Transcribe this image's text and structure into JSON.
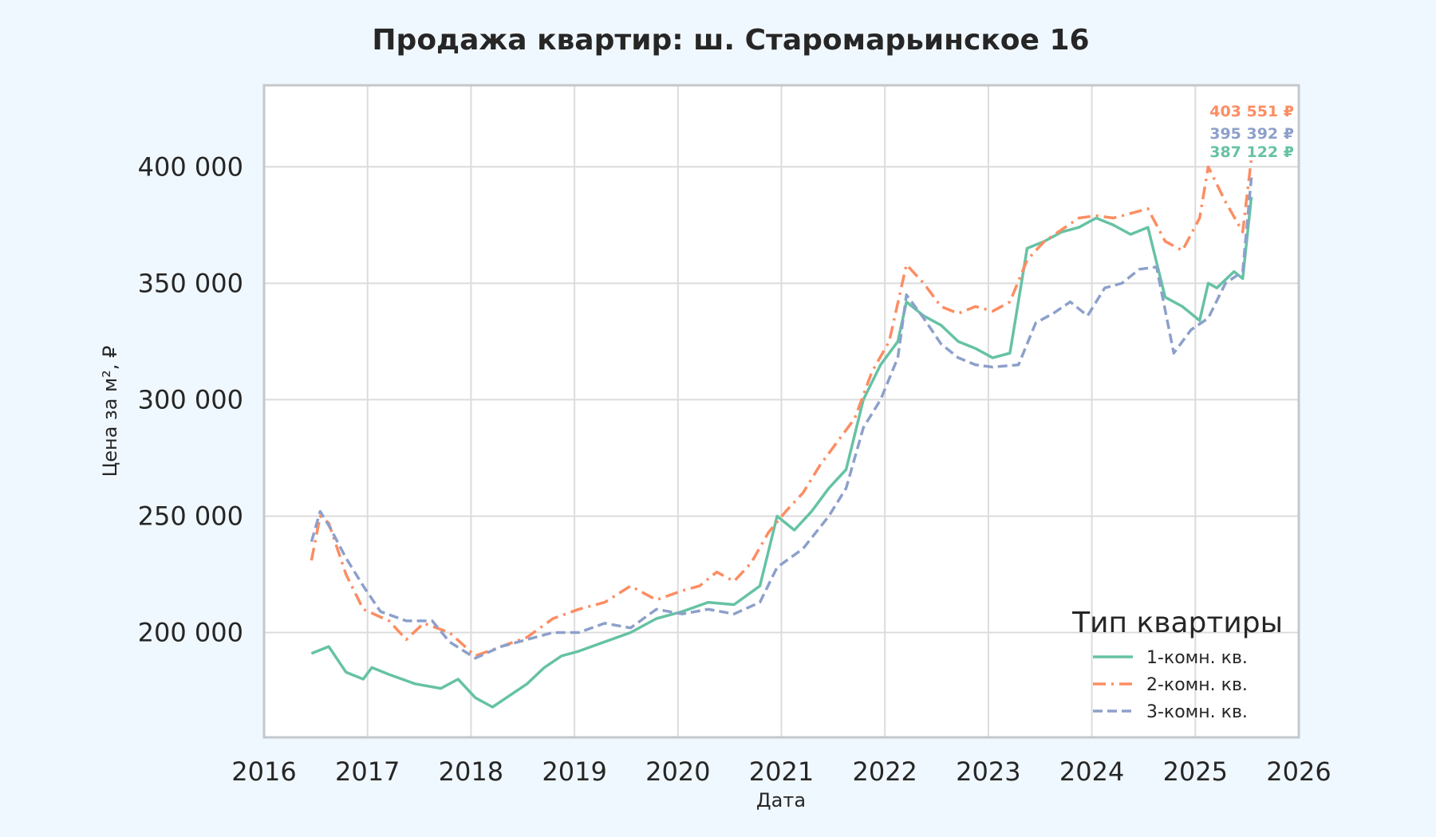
{
  "chart_data": {
    "type": "line",
    "title": "Продажа квартир: ш. Старомарьинское 16",
    "xlabel": "Дата",
    "ylabel": "Цена за м², ₽",
    "xlim": [
      2016,
      2026
    ],
    "ylim": [
      155000,
      435000
    ],
    "x_ticks": [
      "2016",
      "2017",
      "2018",
      "2019",
      "2020",
      "2021",
      "2022",
      "2023",
      "2024",
      "2025",
      "2026"
    ],
    "y_ticks": [
      "200 000",
      "250 000",
      "300 000",
      "350 000",
      "400 000"
    ],
    "y_tick_values": [
      200000,
      250000,
      300000,
      350000,
      400000
    ],
    "grid": true,
    "legend": {
      "title": "Тип квартиры",
      "placement": "lower-right"
    },
    "series": [
      {
        "name": "1-комн. кв.",
        "color": "#66c2a5",
        "style": "solid",
        "last_label": "387 122 ₽",
        "points": [
          [
            "2016-06",
            191000
          ],
          [
            "2016-08",
            194000
          ],
          [
            "2016-10",
            183000
          ],
          [
            "2016-12",
            180000
          ],
          [
            "2017-01",
            185000
          ],
          [
            "2017-03",
            182000
          ],
          [
            "2017-06",
            178000
          ],
          [
            "2017-09",
            176000
          ],
          [
            "2017-11",
            180000
          ],
          [
            "2018-01",
            172000
          ],
          [
            "2018-03",
            168000
          ],
          [
            "2018-05",
            173000
          ],
          [
            "2018-07",
            178000
          ],
          [
            "2018-09",
            185000
          ],
          [
            "2018-11",
            190000
          ],
          [
            "2019-01",
            192000
          ],
          [
            "2019-04",
            196000
          ],
          [
            "2019-07",
            200000
          ],
          [
            "2019-10",
            206000
          ],
          [
            "2020-01",
            209000
          ],
          [
            "2020-04",
            213000
          ],
          [
            "2020-07",
            212000
          ],
          [
            "2020-10",
            220000
          ],
          [
            "2020-12",
            250000
          ],
          [
            "2021-02",
            244000
          ],
          [
            "2021-04",
            252000
          ],
          [
            "2021-06",
            262000
          ],
          [
            "2021-08",
            270000
          ],
          [
            "2021-10",
            300000
          ],
          [
            "2021-12",
            315000
          ],
          [
            "2022-02",
            325000
          ],
          [
            "2022-03",
            342000
          ],
          [
            "2022-05",
            336000
          ],
          [
            "2022-07",
            332000
          ],
          [
            "2022-09",
            325000
          ],
          [
            "2022-11",
            322000
          ],
          [
            "2023-01",
            318000
          ],
          [
            "2023-03",
            320000
          ],
          [
            "2023-05",
            365000
          ],
          [
            "2023-07",
            368000
          ],
          [
            "2023-09",
            372000
          ],
          [
            "2023-11",
            374000
          ],
          [
            "2024-01",
            378000
          ],
          [
            "2024-03",
            375000
          ],
          [
            "2024-05",
            371000
          ],
          [
            "2024-07",
            374000
          ],
          [
            "2024-09",
            344000
          ],
          [
            "2024-11",
            340000
          ],
          [
            "2025-01",
            334000
          ],
          [
            "2025-02",
            350000
          ],
          [
            "2025-03",
            348000
          ],
          [
            "2025-05",
            355000
          ],
          [
            "2025-06",
            352000
          ],
          [
            "2025-07",
            387122
          ]
        ]
      },
      {
        "name": "2-комн. кв.",
        "color": "#fc8d62",
        "style": "dashdot",
        "last_label": "403 551 ₽",
        "points": [
          [
            "2016-06",
            231000
          ],
          [
            "2016-07",
            250000
          ],
          [
            "2016-08",
            247000
          ],
          [
            "2016-10",
            225000
          ],
          [
            "2016-12",
            210000
          ],
          [
            "2017-03",
            205000
          ],
          [
            "2017-05",
            197000
          ],
          [
            "2017-07",
            204000
          ],
          [
            "2017-10",
            200000
          ],
          [
            "2018-01",
            190000
          ],
          [
            "2018-04",
            194000
          ],
          [
            "2018-07",
            198000
          ],
          [
            "2018-10",
            206000
          ],
          [
            "2019-01",
            210000
          ],
          [
            "2019-04",
            213000
          ],
          [
            "2019-07",
            220000
          ],
          [
            "2019-10",
            214000
          ],
          [
            "2020-01",
            218000
          ],
          [
            "2020-03",
            220000
          ],
          [
            "2020-05",
            226000
          ],
          [
            "2020-07",
            222000
          ],
          [
            "2020-09",
            230000
          ],
          [
            "2020-11",
            243000
          ],
          [
            "2021-01",
            252000
          ],
          [
            "2021-03",
            260000
          ],
          [
            "2021-05",
            272000
          ],
          [
            "2021-07",
            282000
          ],
          [
            "2021-09",
            292000
          ],
          [
            "2021-11",
            312000
          ],
          [
            "2022-01",
            325000
          ],
          [
            "2022-03",
            358000
          ],
          [
            "2022-05",
            350000
          ],
          [
            "2022-07",
            340000
          ],
          [
            "2022-09",
            337000
          ],
          [
            "2022-11",
            340000
          ],
          [
            "2023-01",
            338000
          ],
          [
            "2023-03",
            342000
          ],
          [
            "2023-05",
            360000
          ],
          [
            "2023-07",
            368000
          ],
          [
            "2023-09",
            373000
          ],
          [
            "2023-11",
            378000
          ],
          [
            "2024-01",
            379000
          ],
          [
            "2024-03",
            378000
          ],
          [
            "2024-05",
            380000
          ],
          [
            "2024-07",
            382000
          ],
          [
            "2024-09",
            368000
          ],
          [
            "2024-11",
            364000
          ],
          [
            "2025-01",
            378000
          ],
          [
            "2025-02",
            400000
          ],
          [
            "2025-04",
            385000
          ],
          [
            "2025-06",
            372000
          ],
          [
            "2025-07",
            403551
          ]
        ]
      },
      {
        "name": "3-комн. кв.",
        "color": "#8da0cb",
        "style": "dashed",
        "last_label": "395 392 ₽",
        "points": [
          [
            "2016-06",
            239000
          ],
          [
            "2016-07",
            252000
          ],
          [
            "2016-08",
            246000
          ],
          [
            "2016-10",
            232000
          ],
          [
            "2016-12",
            220000
          ],
          [
            "2017-02",
            209000
          ],
          [
            "2017-05",
            205000
          ],
          [
            "2017-08",
            205000
          ],
          [
            "2017-10",
            196000
          ],
          [
            "2018-01",
            189000
          ],
          [
            "2018-04",
            194000
          ],
          [
            "2018-07",
            197000
          ],
          [
            "2018-10",
            200000
          ],
          [
            "2019-01",
            200000
          ],
          [
            "2019-04",
            204000
          ],
          [
            "2019-07",
            202000
          ],
          [
            "2019-10",
            210000
          ],
          [
            "2020-01",
            208000
          ],
          [
            "2020-04",
            210000
          ],
          [
            "2020-07",
            208000
          ],
          [
            "2020-10",
            213000
          ],
          [
            "2020-12",
            228000
          ],
          [
            "2021-03",
            236000
          ],
          [
            "2021-06",
            250000
          ],
          [
            "2021-08",
            262000
          ],
          [
            "2021-10",
            288000
          ],
          [
            "2021-12",
            300000
          ],
          [
            "2022-02",
            318000
          ],
          [
            "2022-03",
            345000
          ],
          [
            "2022-05",
            335000
          ],
          [
            "2022-07",
            324000
          ],
          [
            "2022-09",
            318000
          ],
          [
            "2022-11",
            315000
          ],
          [
            "2023-01",
            314000
          ],
          [
            "2023-04",
            315000
          ],
          [
            "2023-06",
            333000
          ],
          [
            "2023-08",
            337000
          ],
          [
            "2023-10",
            342000
          ],
          [
            "2023-12",
            336000
          ],
          [
            "2024-02",
            348000
          ],
          [
            "2024-04",
            350000
          ],
          [
            "2024-06",
            356000
          ],
          [
            "2024-08",
            357000
          ],
          [
            "2024-10",
            320000
          ],
          [
            "2024-12",
            330000
          ],
          [
            "2025-02",
            335000
          ],
          [
            "2025-04",
            350000
          ],
          [
            "2025-06",
            355000
          ],
          [
            "2025-07",
            395392
          ]
        ]
      }
    ]
  }
}
